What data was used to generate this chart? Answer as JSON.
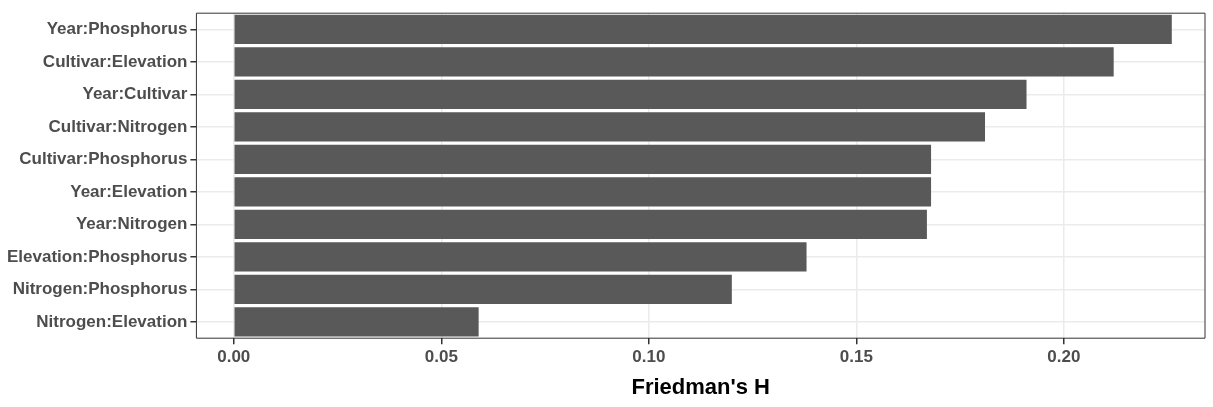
{
  "chart_data": {
    "type": "bar",
    "orientation": "horizontal",
    "xlabel": "Friedman's H",
    "categories": [
      "Year:Phosphorus",
      "Cultivar:Elevation",
      "Year:Cultivar",
      "Cultivar:Nitrogen",
      "Cultivar:Phosphorus",
      "Year:Elevation",
      "Year:Nitrogen",
      "Elevation:Phosphorus",
      "Nitrogen:Phosphorus",
      "Nitrogen:Elevation"
    ],
    "values": [
      0.226,
      0.212,
      0.191,
      0.181,
      0.168,
      0.168,
      0.167,
      0.138,
      0.12,
      0.059
    ],
    "color": "#595959",
    "xlim": [
      -0.009,
      0.234
    ],
    "xticks": [
      {
        "value": 0,
        "label": "0.00"
      },
      0.05,
      {
        "value": 0.1,
        "label": "0.10"
      },
      0.15,
      {
        "value": 0.2,
        "label": "0.20"
      }
    ],
    "grid": true,
    "legend": false
  }
}
